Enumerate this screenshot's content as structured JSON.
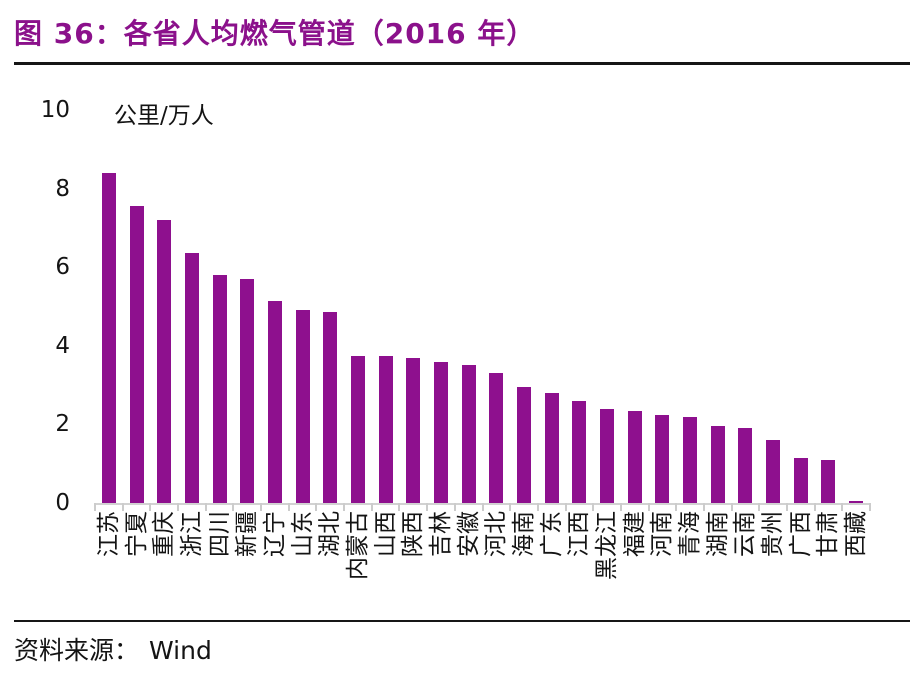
{
  "figure": {
    "title": "图 36：各省人均燃气管道（2016 年）",
    "source_label": "资料来源：",
    "source_value": "Wind"
  },
  "chart_data": {
    "type": "bar",
    "title": "各省人均燃气管道（2016 年）",
    "ylabel": "公里/万人",
    "unit_label": "公里/万人",
    "xlabel": "",
    "ylim": [
      0,
      10
    ],
    "yticks": [
      0,
      2,
      4,
      6,
      8,
      10
    ],
    "grid": false,
    "legend_position": "none",
    "bar_color": "#8E108E",
    "categories": [
      "江苏",
      "宁夏",
      "重庆",
      "浙江",
      "四川",
      "新疆",
      "辽宁",
      "山东",
      "湖北",
      "内蒙古",
      "山西",
      "陕西",
      "吉林",
      "安徽",
      "河北",
      "海南",
      "广东",
      "江西",
      "黑龙江",
      "福建",
      "河南",
      "青海",
      "湖南",
      "云南",
      "贵州",
      "广西",
      "甘肃",
      "西藏"
    ],
    "values": [
      8.4,
      7.55,
      7.2,
      6.35,
      5.8,
      5.7,
      5.15,
      4.9,
      4.85,
      3.75,
      3.75,
      3.7,
      3.6,
      3.5,
      3.3,
      2.95,
      2.8,
      2.6,
      2.4,
      2.35,
      2.25,
      2.2,
      1.95,
      1.9,
      1.6,
      1.15,
      1.1,
      0.05
    ]
  }
}
